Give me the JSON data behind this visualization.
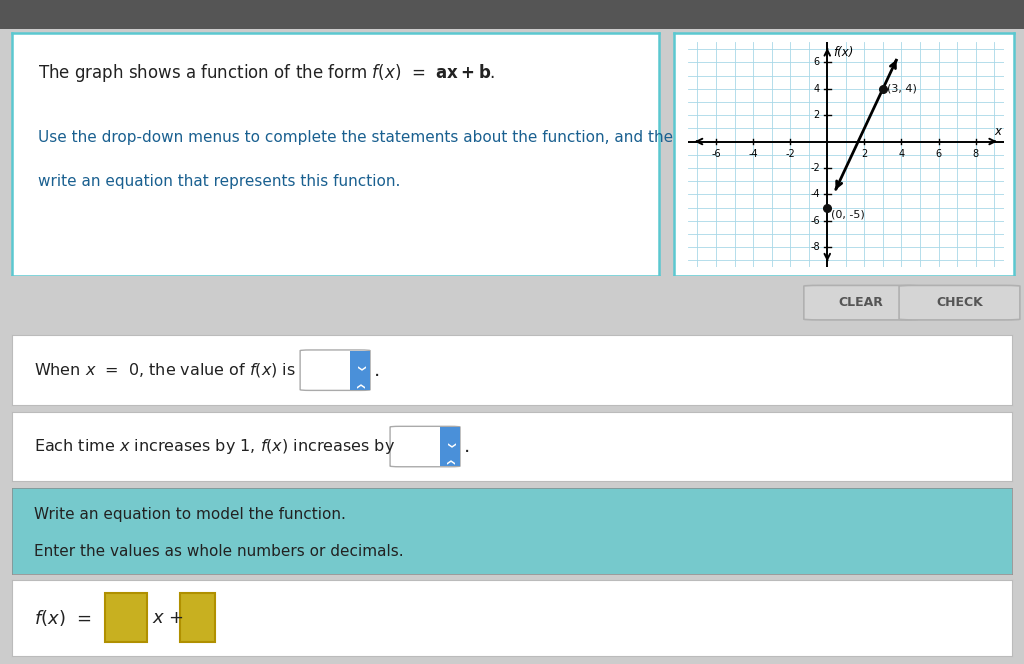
{
  "bg_color": "#cccccc",
  "top_panel_bg": "#ffffff",
  "top_panel_border": "#5bc8d0",
  "graph_panel_bg": "#ffffff",
  "graph_panel_border": "#5bc8d0",
  "graph_inner_bg": "#daeef5",
  "graph_grid_color": "#a8d8e8",
  "line_color": "#000000",
  "point_color": "#111111",
  "axis_color": "#000000",
  "point1": [
    0,
    -5
  ],
  "point2": [
    3,
    4
  ],
  "label1": "(0, -5)",
  "label2": "(3, 4)",
  "x_axis_label": "x",
  "y_axis_label": "f(x)",
  "x_ticks": [
    -6,
    -4,
    -2,
    2,
    4,
    6,
    8
  ],
  "y_ticks": [
    -8,
    -6,
    -4,
    -2,
    2,
    4,
    6
  ],
  "x_lim": [
    -7.5,
    9.5
  ],
  "y_lim": [
    -9.5,
    7.5
  ],
  "clear_btn": "CLEAR",
  "check_btn": "CHECK",
  "teal_bg": "#76c9cc",
  "dropdown_color": "#4a90d9",
  "box_color": "#c8b020",
  "text_color_dark": "#222222",
  "darkbar_color": "#555555",
  "row3_title": "Write an equation to model the function.",
  "row3_sub": "Enter the values as whole numbers or decimals."
}
